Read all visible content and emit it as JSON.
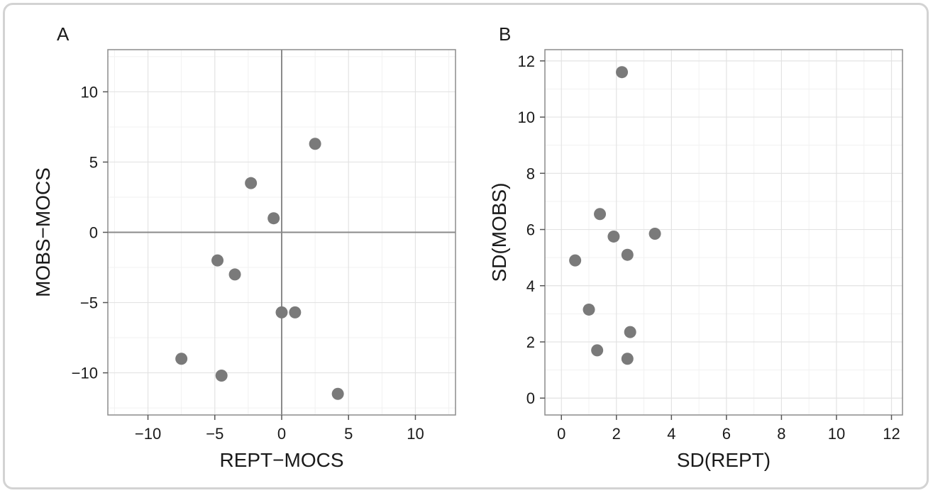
{
  "panels": [
    {
      "label": "A"
    },
    {
      "label": "B"
    }
  ],
  "chart_data": [
    {
      "type": "scatter",
      "xlabel": "REPT−MOCS",
      "ylabel": "MOBS−MOCS",
      "xlim": [
        -13,
        13
      ],
      "ylim": [
        -13,
        13
      ],
      "xticks": [
        -10,
        -5,
        0,
        5,
        10
      ],
      "xtick_labels": [
        "−10",
        "−5",
        "0",
        "5",
        "10"
      ],
      "yticks": [
        -10,
        -5,
        0,
        5,
        10
      ],
      "ytick_labels": [
        "−10",
        "−5",
        "0",
        "5",
        "10"
      ],
      "grid": true,
      "reference_lines": {
        "x": 0,
        "y": 0
      },
      "marker_color": "#7a7a7a",
      "points": [
        {
          "x": 2.5,
          "y": 6.3
        },
        {
          "x": -2.3,
          "y": 3.5
        },
        {
          "x": -0.6,
          "y": 1.0
        },
        {
          "x": -4.8,
          "y": -2.0
        },
        {
          "x": -3.5,
          "y": -3.0
        },
        {
          "x": 0.0,
          "y": -5.7
        },
        {
          "x": 1.0,
          "y": -5.7
        },
        {
          "x": -7.5,
          "y": -9.0
        },
        {
          "x": -4.5,
          "y": -10.2
        },
        {
          "x": 4.2,
          "y": -11.5
        }
      ]
    },
    {
      "type": "scatter",
      "xlabel": "SD(REPT)",
      "ylabel": "SD(MOBS)",
      "xlim": [
        -0.6,
        12.4
      ],
      "ylim": [
        -0.6,
        12.4
      ],
      "xticks": [
        0,
        2,
        4,
        6,
        8,
        10,
        12
      ],
      "xtick_labels": [
        "0",
        "2",
        "4",
        "6",
        "8",
        "10",
        "12"
      ],
      "yticks": [
        0,
        2,
        4,
        6,
        8,
        10,
        12
      ],
      "ytick_labels": [
        "0",
        "2",
        "4",
        "6",
        "8",
        "10",
        "12"
      ],
      "grid": true,
      "marker_color": "#7a7a7a",
      "points": [
        {
          "x": 2.2,
          "y": 11.6
        },
        {
          "x": 1.4,
          "y": 6.55
        },
        {
          "x": 1.9,
          "y": 5.75
        },
        {
          "x": 3.4,
          "y": 5.85
        },
        {
          "x": 2.4,
          "y": 5.1
        },
        {
          "x": 0.5,
          "y": 4.9
        },
        {
          "x": 1.0,
          "y": 3.15
        },
        {
          "x": 2.5,
          "y": 2.35
        },
        {
          "x": 1.3,
          "y": 1.7
        },
        {
          "x": 2.4,
          "y": 1.4
        }
      ]
    }
  ]
}
